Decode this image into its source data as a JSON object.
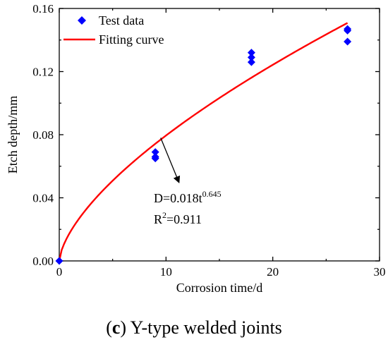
{
  "chart_data": {
    "type": "scatter",
    "xlabel": "Corrosion time/d",
    "ylabel": "Etch depth/mm",
    "xlim": [
      0,
      30
    ],
    "ylim": [
      0,
      0.16
    ],
    "xticks": [
      "0",
      "10",
      "20",
      "30"
    ],
    "yticks": [
      "0.00",
      "0.04",
      "0.08",
      "0.12",
      "0.16"
    ],
    "grid": false,
    "legend_position": "top-left",
    "series": [
      {
        "name": "Test data",
        "kind": "scatter",
        "marker": "diamond",
        "color": "#0000ff",
        "points": [
          {
            "x": 0,
            "y": 0.0
          },
          {
            "x": 9,
            "y": 0.065
          },
          {
            "x": 9,
            "y": 0.066
          },
          {
            "x": 9,
            "y": 0.069
          },
          {
            "x": 18,
            "y": 0.126
          },
          {
            "x": 18,
            "y": 0.129
          },
          {
            "x": 18,
            "y": 0.132
          },
          {
            "x": 27,
            "y": 0.139
          },
          {
            "x": 27,
            "y": 0.146
          },
          {
            "x": 27,
            "y": 0.147
          }
        ]
      },
      {
        "name": "Fitting curve",
        "kind": "line",
        "color": "#ff0000",
        "equation": {
          "a": 0.018,
          "b": 0.645
        },
        "x_range": [
          0,
          27
        ]
      }
    ],
    "annotation": {
      "equation_base": "D=0.018t",
      "equation_exponent": "0.645",
      "r2_prefix": "R",
      "r2_sup": "2",
      "r2_value": "=0.911",
      "arrow_from": {
        "x": 9.5,
        "y": 0.078
      },
      "arrow_to": {
        "x": 11.2,
        "y": 0.05
      }
    }
  },
  "caption": {
    "label": "c",
    "text": " Y-type welded joints"
  }
}
